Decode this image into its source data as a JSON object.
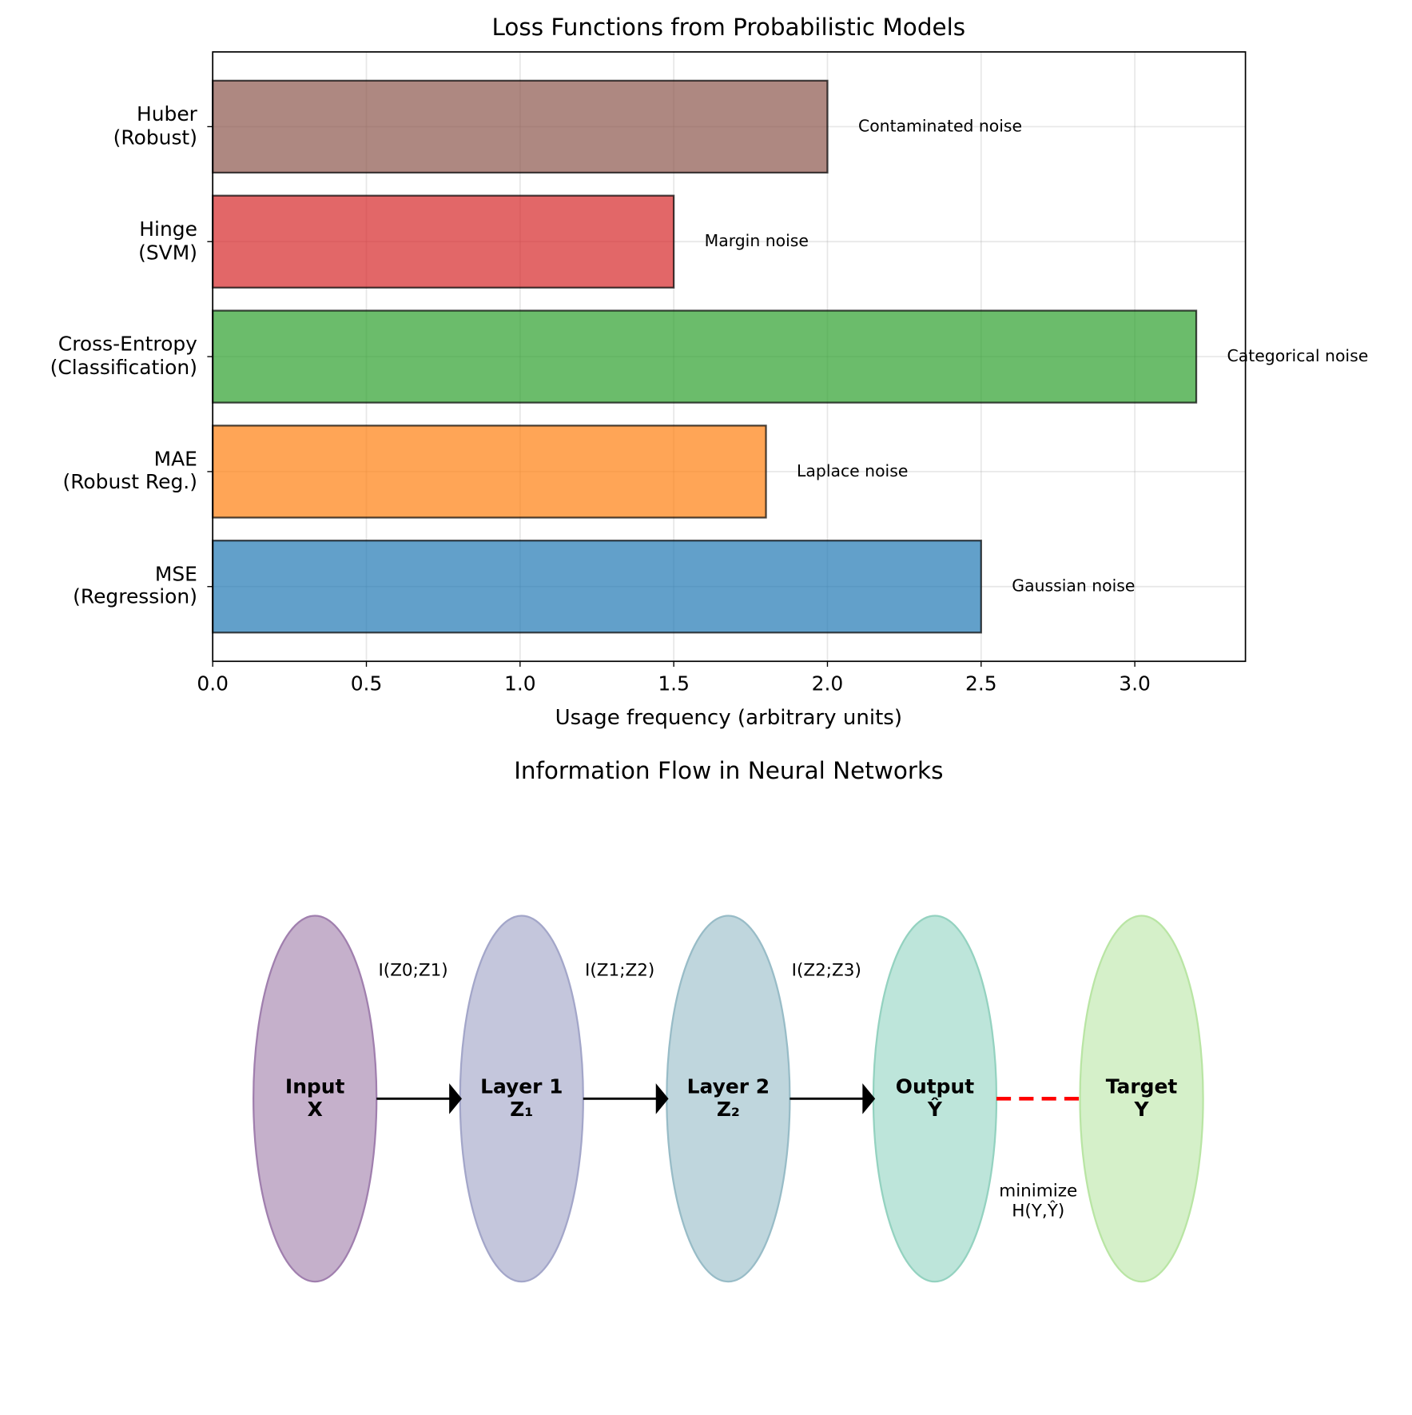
{
  "chart_data": {
    "type": "barh",
    "title": "Loss Functions from Probabilistic Models",
    "xlabel": "Usage frequency (arbitrary units)",
    "categories": [
      "MSE\n(Regression)",
      "MAE\n(Robust Reg.)",
      "Cross-Entropy\n(Classification)",
      "Hinge\n(SVM)",
      "Huber\n(Robust)"
    ],
    "values": [
      2.5,
      1.8,
      3.2,
      1.5,
      2.0
    ],
    "colors": [
      "#1f77b4",
      "#ff7f0e",
      "#2ca02c",
      "#d62728",
      "#8c564b"
    ],
    "annotations": [
      "Gaussian noise",
      "Laplace noise",
      "Categorical noise",
      "Margin noise",
      "Contaminated noise"
    ],
    "xlim": [
      0,
      3.36
    ],
    "ylim": [
      -0.65,
      4.65
    ],
    "xticks": [
      {
        "value": 0,
        "label": "0.0"
      },
      0.5,
      {
        "value": 1,
        "label": "1.0"
      },
      1.5,
      {
        "value": 2,
        "label": "2.0"
      },
      2.5,
      {
        "value": 3,
        "label": "3.0"
      }
    ],
    "grid": true
  },
  "diagram": {
    "title": "Information Flow in Neural Networks",
    "nodes": [
      {
        "label": "Input\nX",
        "color": "#c5b0cb",
        "edgecolor": "#a07fae"
      },
      {
        "label": "Layer 1\nZ₁",
        "color": "#c4c6dc",
        "edgecolor": "#a3a6c9"
      },
      {
        "label": "Layer 2\nZ₂",
        "color": "#bfd6dd",
        "edgecolor": "#98bcc7"
      },
      {
        "label": "Output\nŶ",
        "color": "#bde5da",
        "edgecolor": "#94d2c0"
      },
      {
        "label": "Target\nY",
        "color": "#d5f0c9",
        "edgecolor": "#b9e5a4"
      }
    ],
    "edges": [
      "I(Z0;Z1)",
      "I(Z1;Z2)",
      "I(Z2;Z3)"
    ],
    "loss_label": "minimize\nH(Y,Ŷ)"
  }
}
